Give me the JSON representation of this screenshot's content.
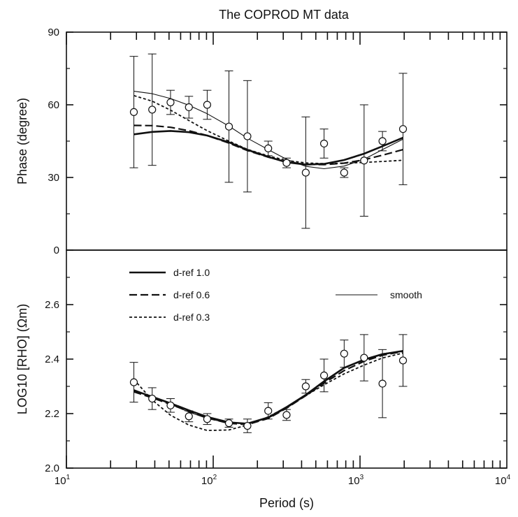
{
  "chart_data": [
    {
      "type": "line",
      "panel": "phase",
      "title": "The COPROD MT data",
      "xlabel": "",
      "ylabel": "Phase (degree)",
      "xscale": "log",
      "xlim": [
        10,
        10000
      ],
      "ylim": [
        0,
        90
      ],
      "yticks": [
        "0",
        "30",
        "60",
        "90"
      ],
      "observed": {
        "x": [
          28.8,
          38.4,
          51.2,
          68.3,
          91.0,
          128,
          171,
          237,
          316,
          427,
          569,
          780,
          1066,
          1422,
          1963
        ],
        "y": [
          57,
          58,
          61,
          59,
          60,
          51,
          47,
          42,
          36,
          32,
          44,
          32,
          37,
          45,
          50
        ],
        "err": [
          23,
          23,
          5,
          4.5,
          6,
          23,
          23,
          3,
          2,
          23,
          6,
          2,
          23,
          4,
          23
        ]
      },
      "series": [
        {
          "name": "d-ref 1.0",
          "x": [
            28.8,
            38.4,
            51.2,
            68.3,
            91.0,
            128,
            171,
            237,
            316,
            427,
            569,
            780,
            1066,
            1422,
            1963
          ],
          "values": [
            47.8,
            48.8,
            49.2,
            48.7,
            47.3,
            44.5,
            41.4,
            38.5,
            36.3,
            35.3,
            35.6,
            37.2,
            39.8,
            42.9,
            46.4
          ]
        },
        {
          "name": "d-ref 0.6",
          "x": [
            28.8,
            38.4,
            51.2,
            68.3,
            91.0,
            128,
            171,
            237,
            316,
            427,
            569,
            780,
            1066,
            1422,
            1963
          ],
          "values": [
            51.5,
            51.4,
            50.7,
            49.3,
            47.3,
            44.2,
            41.1,
            38.4,
            36.4,
            35.4,
            35.3,
            35.9,
            37.3,
            39.2,
            41.5
          ]
        },
        {
          "name": "d-ref 0.3",
          "x": [
            28.8,
            38.4,
            51.2,
            68.3,
            91.0,
            128,
            171,
            237,
            316,
            427,
            569,
            780,
            1066,
            1422,
            1963
          ],
          "values": [
            63.8,
            61.5,
            57.8,
            53.5,
            49.3,
            45.0,
            41.6,
            38.9,
            37.0,
            36.0,
            35.7,
            35.9,
            36.2,
            36.6,
            37.1
          ]
        },
        {
          "name": "smooth",
          "x": [
            28.8,
            38.4,
            51.2,
            68.3,
            91.0,
            128,
            171,
            237,
            316,
            427,
            569,
            780,
            1066,
            1422,
            1963
          ],
          "values": [
            65.6,
            64.6,
            62.6,
            59.8,
            56.3,
            51.2,
            46.2,
            41.5,
            37.5,
            34.6,
            33.6,
            34.7,
            37.5,
            41.5,
            45.8
          ]
        }
      ]
    },
    {
      "type": "line",
      "panel": "rho",
      "title": "",
      "xlabel": "Period (s)",
      "ylabel": "LOG10 [RHO] (Ωm)",
      "xscale": "log",
      "xlim": [
        10,
        10000
      ],
      "ylim": [
        2.0,
        2.8
      ],
      "yticks": [
        "2.0",
        "2.2",
        "2.4",
        "2.6"
      ],
      "xticks": [
        {
          "base": "10",
          "exp": "1"
        },
        {
          "base": "10",
          "exp": "2"
        },
        {
          "base": "10",
          "exp": "3"
        },
        {
          "base": "10",
          "exp": "4"
        }
      ],
      "legend": {
        "placement": "upper-left",
        "entries": [
          "d-ref 1.0",
          "d-ref 0.6",
          "d-ref 0.3",
          "smooth"
        ]
      },
      "observed": {
        "x": [
          28.8,
          38.4,
          51.2,
          68.3,
          91.0,
          128,
          171,
          237,
          316,
          427,
          569,
          780,
          1066,
          1422,
          1963
        ],
        "y": [
          2.315,
          2.255,
          2.23,
          2.19,
          2.18,
          2.165,
          2.155,
          2.21,
          2.195,
          2.3,
          2.34,
          2.42,
          2.405,
          2.31,
          2.395
        ],
        "err": [
          0.073,
          0.04,
          0.025,
          0.02,
          0.02,
          0.015,
          0.025,
          0.03,
          0.02,
          0.025,
          0.06,
          0.05,
          0.085,
          0.125,
          0.095
        ]
      },
      "series": [
        {
          "name": "d-ref 1.0",
          "x": [
            28.8,
            38.4,
            51.2,
            68.3,
            91.0,
            128,
            171,
            237,
            316,
            427,
            569,
            780,
            1066,
            1422,
            1963
          ],
          "values": [
            2.285,
            2.262,
            2.238,
            2.212,
            2.188,
            2.168,
            2.163,
            2.185,
            2.222,
            2.268,
            2.318,
            2.368,
            2.398,
            2.418,
            2.43
          ]
        },
        {
          "name": "d-ref 0.6",
          "x": [
            28.8,
            38.4,
            51.2,
            68.3,
            91.0,
            128,
            171,
            237,
            316,
            427,
            569,
            780,
            1066,
            1422,
            1963
          ],
          "values": [
            2.28,
            2.258,
            2.234,
            2.208,
            2.184,
            2.164,
            2.16,
            2.182,
            2.22,
            2.266,
            2.312,
            2.358,
            2.392,
            2.414,
            2.428
          ]
        },
        {
          "name": "d-ref 0.3",
          "x": [
            28.8,
            38.4,
            51.2,
            68.3,
            91.0,
            128,
            171,
            237,
            316,
            427,
            569,
            780,
            1066,
            1422,
            1963
          ],
          "values": [
            2.325,
            2.25,
            2.194,
            2.158,
            2.138,
            2.14,
            2.158,
            2.188,
            2.224,
            2.266,
            2.306,
            2.346,
            2.378,
            2.404,
            2.422
          ]
        },
        {
          "name": "smooth",
          "x": [
            28.8,
            38.4,
            51.2,
            68.3,
            91.0,
            128,
            171,
            237,
            316,
            427,
            569,
            780,
            1066,
            1422,
            1963
          ],
          "values": [
            2.288,
            2.262,
            2.234,
            2.206,
            2.182,
            2.165,
            2.165,
            2.188,
            2.226,
            2.271,
            2.321,
            2.368,
            2.4,
            2.42,
            2.43
          ]
        }
      ]
    }
  ],
  "style": {
    "line_color": "#111111",
    "background": "#ffffff",
    "grid": false
  }
}
